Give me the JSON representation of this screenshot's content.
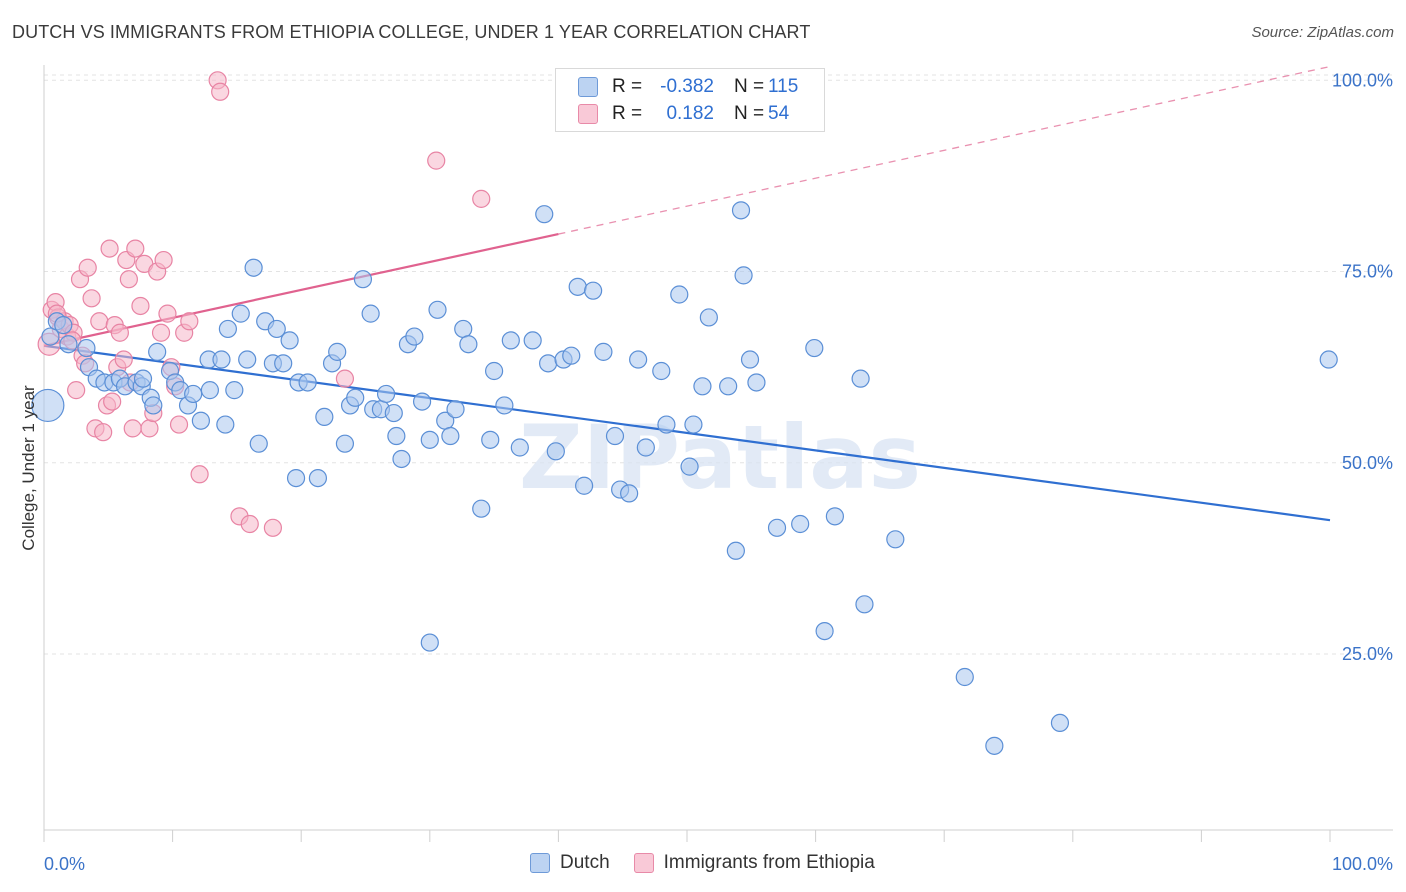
{
  "header": {
    "title": "DUTCH VS IMMIGRANTS FROM ETHIOPIA COLLEGE, UNDER 1 YEAR CORRELATION CHART",
    "source": "Source: ZipAtlas.com"
  },
  "legend": {
    "rows": [
      {
        "r_label": "R =",
        "r_value": "-0.382",
        "n_label": "N =",
        "n_value": "115"
      },
      {
        "r_label": "R =",
        "r_value": "0.182",
        "n_label": "N =",
        "n_value": "54"
      }
    ]
  },
  "bottom_legend": {
    "dutch": "Dutch",
    "ethiopia": "Immigrants from Ethiopia"
  },
  "colors": {
    "dutch_fill": "#a9c6ee",
    "dutch_stroke": "#5b8fd6",
    "dutch_line": "#2f6fd1",
    "eth_fill": "#f5b7c9",
    "eth_stroke": "#e884a4",
    "eth_line": "#e0628f",
    "tick_label": "#3b73c8",
    "grid": "#e3e3e3"
  },
  "chart_data": {
    "type": "scatter",
    "title": "DUTCH VS IMMIGRANTS FROM ETHIOPIA COLLEGE, UNDER 1 YEAR CORRELATION CHART",
    "xlabel": "",
    "ylabel": "College, Under 1 year",
    "xlim": [
      0,
      100
    ],
    "ylim": [
      2,
      102
    ],
    "x_tick_labels": [
      "0.0%",
      "100.0%"
    ],
    "y_ticks": [
      25,
      50,
      75,
      100
    ],
    "y_tick_labels": [
      "25.0%",
      "50.0%",
      "75.0%",
      "100.0%"
    ],
    "grid": true,
    "legend_position": "top-center",
    "watermark": "ZIPatlas",
    "series": [
      {
        "name": "Dutch",
        "r": -0.382,
        "n": 115,
        "trend": {
          "x": [
            0,
            100
          ],
          "y": [
            65.3,
            42.5
          ],
          "solid_to": 100
        },
        "points": [
          [
            0.3,
            57.5
          ],
          [
            0.5,
            66.5
          ],
          [
            1.0,
            68.5
          ],
          [
            1.5,
            68.0
          ],
          [
            1.9,
            65.5
          ],
          [
            3.3,
            65.0
          ],
          [
            3.5,
            62.5
          ],
          [
            4.1,
            61.0
          ],
          [
            4.7,
            60.5
          ],
          [
            5.4,
            60.5
          ],
          [
            5.9,
            61.0
          ],
          [
            6.3,
            60.0
          ],
          [
            7.2,
            60.5
          ],
          [
            7.6,
            60.0
          ],
          [
            7.7,
            61.0
          ],
          [
            8.3,
            58.5
          ],
          [
            8.5,
            57.5
          ],
          [
            8.8,
            64.5
          ],
          [
            9.8,
            62.0
          ],
          [
            10.2,
            60.5
          ],
          [
            10.6,
            59.5
          ],
          [
            11.2,
            57.5
          ],
          [
            11.6,
            59.0
          ],
          [
            12.2,
            55.5
          ],
          [
            12.8,
            63.5
          ],
          [
            12.9,
            59.5
          ],
          [
            13.8,
            63.5
          ],
          [
            14.1,
            55.0
          ],
          [
            14.3,
            67.5
          ],
          [
            14.8,
            59.5
          ],
          [
            15.3,
            69.5
          ],
          [
            15.8,
            63.5
          ],
          [
            16.3,
            75.5
          ],
          [
            16.7,
            52.5
          ],
          [
            17.2,
            68.5
          ],
          [
            17.8,
            63.0
          ],
          [
            18.1,
            67.5
          ],
          [
            18.6,
            63.0
          ],
          [
            19.1,
            66.0
          ],
          [
            19.6,
            48.0
          ],
          [
            19.8,
            60.5
          ],
          [
            20.5,
            60.5
          ],
          [
            21.3,
            48.0
          ],
          [
            21.8,
            56.0
          ],
          [
            22.4,
            63.0
          ],
          [
            22.8,
            64.5
          ],
          [
            23.4,
            52.5
          ],
          [
            23.8,
            57.5
          ],
          [
            24.2,
            58.5
          ],
          [
            24.8,
            74.0
          ],
          [
            25.4,
            69.5
          ],
          [
            25.6,
            57.0
          ],
          [
            26.2,
            57.0
          ],
          [
            26.6,
            59.0
          ],
          [
            27.2,
            56.5
          ],
          [
            27.4,
            53.5
          ],
          [
            27.8,
            50.5
          ],
          [
            28.3,
            65.5
          ],
          [
            28.8,
            66.5
          ],
          [
            29.4,
            58.0
          ],
          [
            30.0,
            53.0
          ],
          [
            30.6,
            70.0
          ],
          [
            31.2,
            55.5
          ],
          [
            31.6,
            53.5
          ],
          [
            32.0,
            57.0
          ],
          [
            32.6,
            67.5
          ],
          [
            33.0,
            65.5
          ],
          [
            34.0,
            44.0
          ],
          [
            34.7,
            53.0
          ],
          [
            35.0,
            62.0
          ],
          [
            35.8,
            57.5
          ],
          [
            36.3,
            66.0
          ],
          [
            37.0,
            52.0
          ],
          [
            38.0,
            66.0
          ],
          [
            38.9,
            82.5
          ],
          [
            39.2,
            63.0
          ],
          [
            39.8,
            51.5
          ],
          [
            40.4,
            63.5
          ],
          [
            41.0,
            64.0
          ],
          [
            41.5,
            73.0
          ],
          [
            42.0,
            47.0
          ],
          [
            42.7,
            72.5
          ],
          [
            43.5,
            64.5
          ],
          [
            44.4,
            53.5
          ],
          [
            44.8,
            46.5
          ],
          [
            45.5,
            46.0
          ],
          [
            46.2,
            63.5
          ],
          [
            46.8,
            52.0
          ],
          [
            48.0,
            62.0
          ],
          [
            48.4,
            55.0
          ],
          [
            49.4,
            72.0
          ],
          [
            50.2,
            49.5
          ],
          [
            50.5,
            55.0
          ],
          [
            51.2,
            60.0
          ],
          [
            51.7,
            69.0
          ],
          [
            53.2,
            60.0
          ],
          [
            53.8,
            38.5
          ],
          [
            54.2,
            83.0
          ],
          [
            54.4,
            74.5
          ],
          [
            54.9,
            63.5
          ],
          [
            55.4,
            60.5
          ],
          [
            57.0,
            41.5
          ],
          [
            58.8,
            42.0
          ],
          [
            59.9,
            65.0
          ],
          [
            60.7,
            28.0
          ],
          [
            61.5,
            43.0
          ],
          [
            63.5,
            61.0
          ],
          [
            63.8,
            31.5
          ],
          [
            66.2,
            40.0
          ],
          [
            71.6,
            22.0
          ],
          [
            73.9,
            13.0
          ],
          [
            79.0,
            16.0
          ],
          [
            99.9,
            63.5
          ],
          [
            30.0,
            26.5
          ]
        ]
      },
      {
        "name": "Immigrants from Ethiopia",
        "r": 0.182,
        "n": 54,
        "trend": {
          "x": [
            0,
            100
          ],
          "y": [
            65.3,
            101.8
          ],
          "solid_to": 40
        },
        "points": [
          [
            0.4,
            65.5
          ],
          [
            0.6,
            70.0
          ],
          [
            0.9,
            71.0
          ],
          [
            1.1,
            69.0
          ],
          [
            1.3,
            67.5
          ],
          [
            1.6,
            68.5
          ],
          [
            1.8,
            66.5
          ],
          [
            2.0,
            68.0
          ],
          [
            2.3,
            67.0
          ],
          [
            2.5,
            59.5
          ],
          [
            2.8,
            74.0
          ],
          [
            3.0,
            64.0
          ],
          [
            3.2,
            63.0
          ],
          [
            3.4,
            75.5
          ],
          [
            3.7,
            71.5
          ],
          [
            4.0,
            54.5
          ],
          [
            4.3,
            68.5
          ],
          [
            4.6,
            54.0
          ],
          [
            4.9,
            57.5
          ],
          [
            5.1,
            78.0
          ],
          [
            5.5,
            68.0
          ],
          [
            5.7,
            62.5
          ],
          [
            5.9,
            67.0
          ],
          [
            6.2,
            63.5
          ],
          [
            6.4,
            76.5
          ],
          [
            6.6,
            74.0
          ],
          [
            6.9,
            54.5
          ],
          [
            7.1,
            78.0
          ],
          [
            7.5,
            70.5
          ],
          [
            7.8,
            76.0
          ],
          [
            8.2,
            54.5
          ],
          [
            8.5,
            56.5
          ],
          [
            8.8,
            75.0
          ],
          [
            9.1,
            67.0
          ],
          [
            9.3,
            76.5
          ],
          [
            9.6,
            69.5
          ],
          [
            9.9,
            62.5
          ],
          [
            10.2,
            60.0
          ],
          [
            10.5,
            55.0
          ],
          [
            10.9,
            67.0
          ],
          [
            11.3,
            68.5
          ],
          [
            12.1,
            48.5
          ],
          [
            13.5,
            100.0
          ],
          [
            13.7,
            98.5
          ],
          [
            15.2,
            43.0
          ],
          [
            16.0,
            42.0
          ],
          [
            17.8,
            41.5
          ],
          [
            23.4,
            61.0
          ],
          [
            30.5,
            89.5
          ],
          [
            34.0,
            84.5
          ],
          [
            1.0,
            69.5
          ],
          [
            2.2,
            66.0
          ],
          [
            5.3,
            58.0
          ],
          [
            6.7,
            60.5
          ]
        ]
      }
    ]
  }
}
